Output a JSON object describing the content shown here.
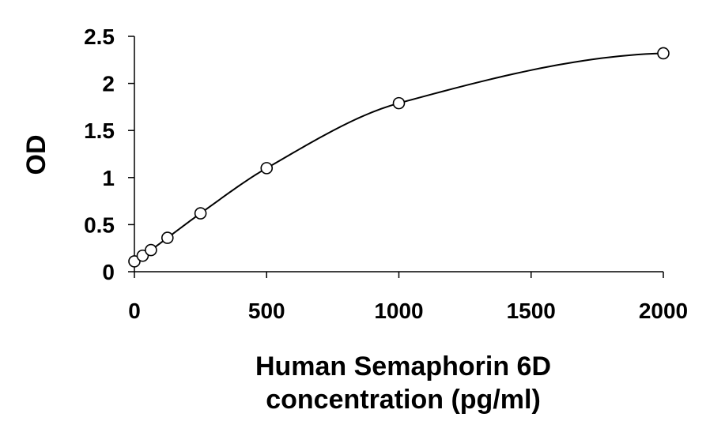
{
  "chart_data": {
    "type": "scatter",
    "title": "",
    "xlabel_lines": [
      "Human Semaphorin 6D",
      "concentration (pg/ml)"
    ],
    "ylabel": "OD",
    "xlim": [
      0,
      2000
    ],
    "ylim": [
      0,
      2.5
    ],
    "xticks": [
      0,
      500,
      1000,
      1500,
      2000
    ],
    "yticks": [
      0,
      0.5,
      1,
      1.5,
      2,
      2.5
    ],
    "xtick_labels": [
      "0",
      "500",
      "1000",
      "1500",
      "2000"
    ],
    "ytick_labels": [
      "0",
      "0.5",
      "1",
      "1.5",
      "2",
      "2.5"
    ],
    "grid": false,
    "legend": "none",
    "series": [
      {
        "x": [
          0,
          31.25,
          62.5,
          125,
          250,
          500,
          1000,
          2000
        ],
        "y": [
          0.11,
          0.17,
          0.23,
          0.36,
          0.62,
          1.1,
          1.79,
          2.32
        ],
        "marker": "open-circle",
        "trendline": "smooth"
      }
    ],
    "colors": {
      "marker": "#000000",
      "line": "#000000",
      "axis": "#000000"
    }
  }
}
